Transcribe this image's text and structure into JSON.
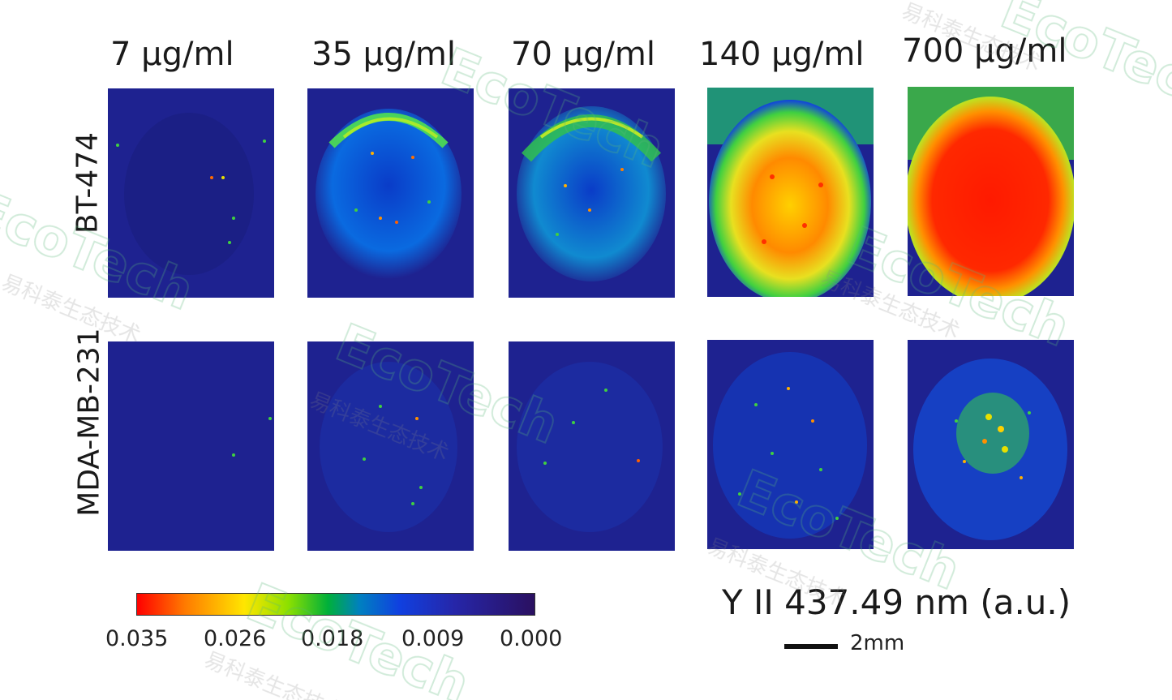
{
  "concentrations": [
    "7 µg/ml",
    "35 µg/ml",
    "70 µg/ml",
    "140 µg/ml",
    "700 µg/ml"
  ],
  "cell_lines": [
    "BT-474",
    "MDA-MB-231"
  ],
  "colorbar": {
    "ticks": [
      "0.035",
      "0.026",
      "0.018",
      "0.009",
      "0.000"
    ],
    "colors": [
      "#ff0000",
      "#ffe600",
      "#00b03a",
      "#1040e0",
      "#2a1060"
    ]
  },
  "channel_label": "Y II 437.49 nm (a.u.)",
  "scale_bar": {
    "label": "2mm"
  },
  "watermark": {
    "brand": "EcoTech",
    "company": "易科泰生态技术"
  },
  "intensity_maps": {
    "BT-474": [
      {
        "concentration": "7 µg/ml",
        "signal": "background"
      },
      {
        "concentration": "35 µg/ml",
        "signal": "weak ring"
      },
      {
        "concentration": "70 µg/ml",
        "signal": "moderate ring"
      },
      {
        "concentration": "140 µg/ml",
        "signal": "high"
      },
      {
        "concentration": "700 µg/ml",
        "signal": "saturated"
      }
    ],
    "MDA-MB-231": [
      {
        "concentration": "7 µg/ml",
        "signal": "background"
      },
      {
        "concentration": "35 µg/ml",
        "signal": "sparse"
      },
      {
        "concentration": "70 µg/ml",
        "signal": "sparse"
      },
      {
        "concentration": "140 µg/ml",
        "signal": "scattered"
      },
      {
        "concentration": "700 µg/ml",
        "signal": "scattered cluster"
      }
    ]
  }
}
